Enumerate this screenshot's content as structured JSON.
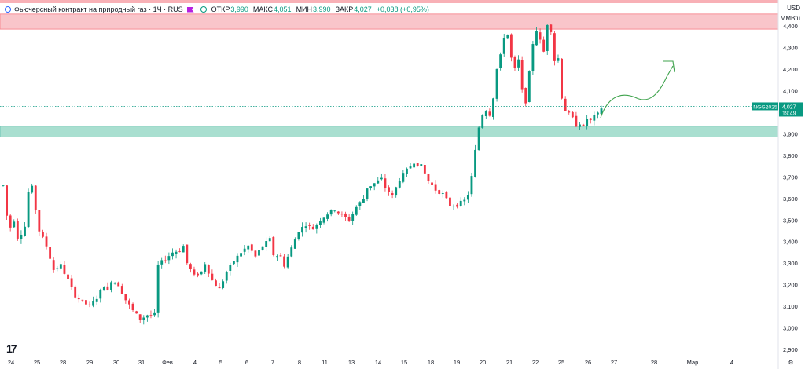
{
  "header": {
    "title": "Фьючерсный контракт на природный газ · 1Ч · RUS",
    "open_label": "ОТКР",
    "open_value": "3,990",
    "high_label": "МАКС",
    "high_value": "4,051",
    "low_label": "МИН",
    "low_value": "3,990",
    "close_label": "ЗАКР",
    "close_value": "4,027",
    "change_value": "+0,038 (+0,95%)"
  },
  "price_scale": {
    "currency": "USD",
    "unit": "MMBtu"
  },
  "last_price": {
    "symbol": "NGG2025",
    "price": "4,027",
    "countdown": "19:49"
  },
  "colors": {
    "up": "#089981",
    "down": "#f23645",
    "resistance_zone": "#f7a7ae",
    "support_zone": "#7ccfb8",
    "drawing": "#3fa34d"
  },
  "chart_data": {
    "type": "candlestick",
    "title": "",
    "y_ticks": [
      2.9,
      3.0,
      3.1,
      3.2,
      3.3,
      3.4,
      3.5,
      3.6,
      3.7,
      3.8,
      3.9,
      4.0,
      4.1,
      4.2,
      4.3,
      4.4
    ],
    "y_tick_labels": [
      "2,900",
      "3,000",
      "3,100",
      "3,200",
      "3,300",
      "3,400",
      "3,500",
      "3,600",
      "3,700",
      "3,800",
      "3,900",
      "4,000",
      "4,100",
      "4,200",
      "4,300",
      "4,400"
    ],
    "ylim": [
      2.875,
      4.52
    ],
    "x_tick_labels": [
      "24",
      "25",
      "28",
      "29",
      "30",
      "31",
      "Фев",
      "4",
      "5",
      "6",
      "7",
      "8",
      "11",
      "13",
      "14",
      "15",
      "18",
      "19",
      "20",
      "21",
      "22",
      "25",
      "26",
      "27",
      "28",
      "Мар",
      "4"
    ],
    "zones": [
      {
        "type": "resistance",
        "from": 4.385,
        "to": 4.455
      },
      {
        "type": "support",
        "from": 3.885,
        "to": 3.935
      }
    ],
    "last_price": 4.027,
    "path": [
      [
        0,
        3.66
      ],
      [
        1.5,
        3.45
      ],
      [
        3,
        3.5
      ],
      [
        4,
        3.42
      ],
      [
        5,
        3.44
      ],
      [
        6,
        3.47
      ],
      [
        7,
        3.63
      ],
      [
        8,
        3.65
      ],
      [
        9,
        3.55
      ],
      [
        10,
        3.45
      ],
      [
        12,
        3.38
      ],
      [
        14,
        3.27
      ],
      [
        16,
        3.29
      ],
      [
        18,
        3.22
      ],
      [
        20,
        3.15
      ],
      [
        22,
        3.12
      ],
      [
        24,
        3.1
      ],
      [
        26,
        3.14
      ],
      [
        28,
        3.2
      ],
      [
        29,
        3.17
      ],
      [
        30,
        3.22
      ],
      [
        32,
        3.2
      ],
      [
        34,
        3.13
      ],
      [
        36,
        3.08
      ],
      [
        38,
        3.04
      ],
      [
        40,
        3.06
      ],
      [
        42,
        3.06
      ],
      [
        43,
        3.29
      ],
      [
        45,
        3.32
      ],
      [
        47,
        3.35
      ],
      [
        49,
        3.36
      ],
      [
        50,
        3.38
      ],
      [
        51,
        3.3
      ],
      [
        53,
        3.24
      ],
      [
        55,
        3.26
      ],
      [
        56,
        3.3
      ],
      [
        58,
        3.22
      ],
      [
        60,
        3.18
      ],
      [
        62,
        3.26
      ],
      [
        64,
        3.31
      ],
      [
        66,
        3.35
      ],
      [
        68,
        3.38
      ],
      [
        70,
        3.33
      ],
      [
        72,
        3.38
      ],
      [
        74,
        3.41
      ],
      [
        75,
        3.34
      ],
      [
        77,
        3.33
      ],
      [
        78,
        3.29
      ],
      [
        80,
        3.37
      ],
      [
        82,
        3.45
      ],
      [
        84,
        3.48
      ],
      [
        86,
        3.46
      ],
      [
        88,
        3.5
      ],
      [
        90,
        3.53
      ],
      [
        92,
        3.55
      ],
      [
        94,
        3.52
      ],
      [
        96,
        3.5
      ],
      [
        98,
        3.56
      ],
      [
        100,
        3.6
      ],
      [
        101,
        3.65
      ],
      [
        103,
        3.67
      ],
      [
        105,
        3.69
      ],
      [
        106,
        3.65
      ],
      [
        108,
        3.61
      ],
      [
        110,
        3.69
      ],
      [
        112,
        3.73
      ],
      [
        114,
        3.77
      ],
      [
        116,
        3.75
      ],
      [
        118,
        3.68
      ],
      [
        120,
        3.64
      ],
      [
        122,
        3.62
      ],
      [
        124,
        3.57
      ],
      [
        126,
        3.57
      ],
      [
        128,
        3.59
      ],
      [
        129,
        3.62
      ],
      [
        130,
        3.7
      ],
      [
        131,
        3.82
      ],
      [
        132,
        3.93
      ],
      [
        133,
        3.99
      ],
      [
        134,
        4.01
      ],
      [
        135,
        3.99
      ],
      [
        136,
        4.07
      ],
      [
        137,
        4.2
      ],
      [
        138,
        4.26
      ],
      [
        139,
        4.35
      ],
      [
        140,
        4.36
      ],
      [
        141,
        4.25
      ],
      [
        142,
        4.2
      ],
      [
        143,
        4.24
      ],
      [
        144,
        4.1
      ],
      [
        145,
        4.05
      ],
      [
        146,
        4.18
      ],
      [
        147,
        4.32
      ],
      [
        148,
        4.38
      ],
      [
        149,
        4.33
      ],
      [
        150,
        4.28
      ],
      [
        151,
        4.41
      ],
      [
        152,
        4.38
      ],
      [
        153,
        4.24
      ],
      [
        154,
        4.25
      ],
      [
        155,
        4.07
      ],
      [
        156,
        4.01
      ],
      [
        157,
        3.99
      ],
      [
        158,
        3.97
      ],
      [
        159,
        3.94
      ],
      [
        160,
        3.95
      ],
      [
        161,
        3.93
      ],
      [
        162,
        3.97
      ],
      [
        163,
        3.96
      ],
      [
        164,
        3.98
      ],
      [
        165,
        3.99
      ],
      [
        166,
        4.02
      ]
    ]
  }
}
